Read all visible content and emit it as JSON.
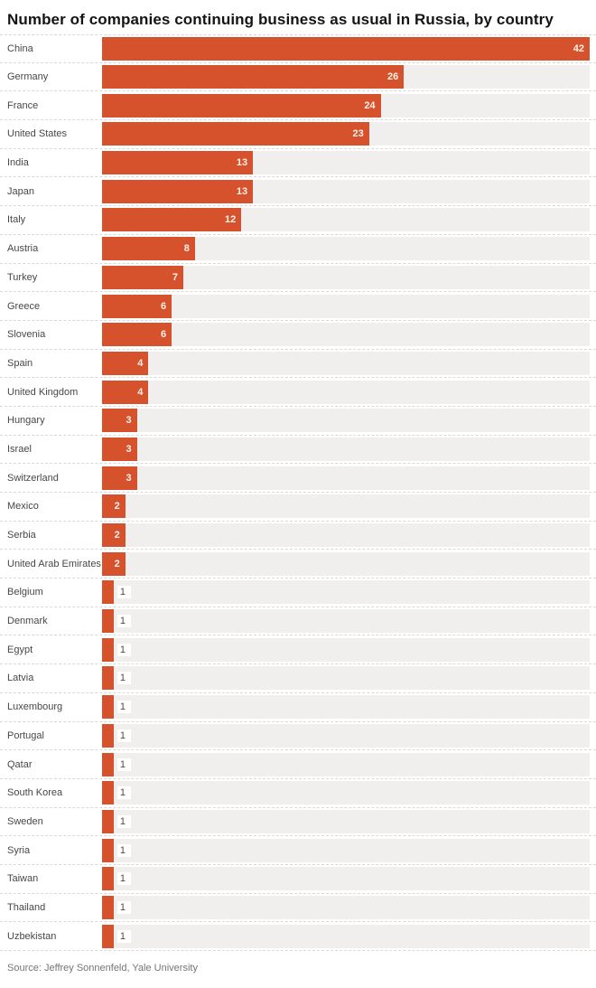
{
  "header": {
    "title": "Number of companies continuing business as usual in Russia, by country"
  },
  "footer": {
    "source": "Source: Jeffrey Sonnenfeld, Yale University"
  },
  "chart_data": {
    "type": "bar",
    "orientation": "horizontal",
    "title": "Number of companies continuing business as usual in Russia, by country",
    "xlabel": "",
    "ylabel": "",
    "xlim": [
      0,
      42
    ],
    "grid": false,
    "legend": false,
    "value_labels": "inside-end, outside for value 1",
    "bar_color": "#d6522c",
    "track_color": "#f0efed",
    "separator_color": "#d9d9d9",
    "categories": [
      "China",
      "Germany",
      "France",
      "United States",
      "India",
      "Japan",
      "Italy",
      "Austria",
      "Turkey",
      "Greece",
      "Slovenia",
      "Spain",
      "United Kingdom",
      "Hungary",
      "Israel",
      "Switzerland",
      "Mexico",
      "Serbia",
      "United Arab Emirates",
      "Belgium",
      "Denmark",
      "Egypt",
      "Latvia",
      "Luxembourg",
      "Portugal",
      "Qatar",
      "South Korea",
      "Sweden",
      "Syria",
      "Taiwan",
      "Thailand",
      "Uzbekistan"
    ],
    "values": [
      42,
      26,
      24,
      23,
      13,
      13,
      12,
      8,
      7,
      6,
      6,
      4,
      4,
      3,
      3,
      3,
      2,
      2,
      2,
      1,
      1,
      1,
      1,
      1,
      1,
      1,
      1,
      1,
      1,
      1,
      1,
      1
    ]
  }
}
